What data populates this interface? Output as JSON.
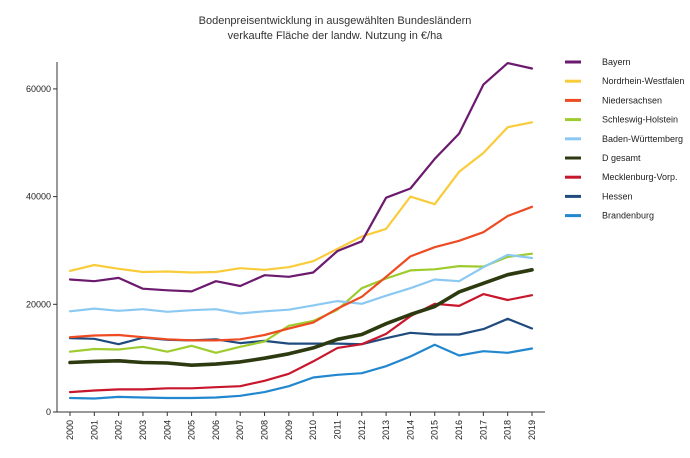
{
  "chart_data": {
    "type": "line",
    "title": "Bodenpreisentwicklung in ausgewählten Bundesländern",
    "subtitle": "verkaufte Fläche der landw. Nutzung in €/ha",
    "xlabel": "",
    "ylabel": "",
    "x": [
      "2000",
      "2001",
      "2002",
      "2003",
      "2004",
      "2005",
      "2006",
      "2007",
      "2008",
      "2009",
      "2010",
      "2011",
      "2012",
      "2013",
      "2014",
      "2015",
      "2016",
      "2017",
      "2018",
      "2019"
    ],
    "ylim": [
      0,
      65000
    ],
    "yticks": [
      0,
      20000,
      40000,
      60000
    ],
    "ytick_labels": [
      "0",
      "20000",
      "40000",
      "60000"
    ],
    "grid": false,
    "legend_position": "right",
    "series": [
      {
        "name": "Bayern",
        "color": "#6b1a6e",
        "width": 2.2,
        "values": [
          24600,
          24300,
          24900,
          22900,
          22600,
          22400,
          24300,
          23400,
          25400,
          25100,
          25900,
          29900,
          31700,
          39800,
          41500,
          47000,
          51700,
          60800,
          64800,
          63800
        ]
      },
      {
        "name": "Nordrhein-Westfalen",
        "color": "#f8cc3a",
        "width": 2.2,
        "values": [
          26200,
          27300,
          26600,
          26000,
          26100,
          25900,
          26000,
          26700,
          26400,
          26900,
          28000,
          30300,
          32600,
          34000,
          40000,
          38600,
          44600,
          48100,
          52900,
          53800
        ]
      },
      {
        "name": "Niedersachsen",
        "color": "#ef4b23",
        "width": 2.2,
        "values": [
          13900,
          14200,
          14300,
          13900,
          13500,
          13300,
          13300,
          13500,
          14300,
          15500,
          16600,
          19200,
          21400,
          25100,
          28900,
          30600,
          31800,
          33400,
          36400,
          38100
        ]
      },
      {
        "name": "Schleswig-Holstein",
        "color": "#9ecb2e",
        "width": 2.2,
        "values": [
          11200,
          11700,
          11600,
          12100,
          11200,
          12300,
          11000,
          12100,
          13100,
          16000,
          16900,
          19000,
          23000,
          24800,
          26300,
          26500,
          27100,
          27000,
          28800,
          29400
        ]
      },
      {
        "name": "Baden-Württemberg",
        "color": "#8cc9f2",
        "width": 2.2,
        "values": [
          18700,
          19200,
          18800,
          19100,
          18600,
          18900,
          19100,
          18300,
          18700,
          19000,
          19800,
          20600,
          20100,
          21600,
          23000,
          24600,
          24300,
          26900,
          29200,
          28600
        ]
      },
      {
        "name": "D gesamt",
        "color": "#2d3a10",
        "width": 3.6,
        "values": [
          9200,
          9400,
          9500,
          9200,
          9100,
          8700,
          8900,
          9300,
          10000,
          10800,
          11900,
          13500,
          14400,
          16400,
          18100,
          19600,
          22300,
          23900,
          25500,
          26400
        ]
      },
      {
        "name": "Mecklenburg-Vorp.",
        "color": "#c8172c",
        "width": 2.2,
        "values": [
          3700,
          4000,
          4200,
          4200,
          4400,
          4400,
          4600,
          4800,
          5800,
          7100,
          9400,
          11900,
          12600,
          14500,
          17800,
          20100,
          19700,
          21900,
          20800,
          21700
        ]
      },
      {
        "name": "Hessen",
        "color": "#1f4b7e",
        "width": 2.2,
        "values": [
          13700,
          13600,
          12600,
          13800,
          13400,
          13300,
          13500,
          12800,
          13200,
          12700,
          12700,
          12700,
          12600,
          13700,
          14700,
          14400,
          14400,
          15400,
          17300,
          15500
        ]
      },
      {
        "name": "Brandenburg",
        "color": "#2287cf",
        "width": 2.2,
        "values": [
          2600,
          2500,
          2800,
          2700,
          2600,
          2600,
          2700,
          3000,
          3700,
          4800,
          6400,
          6900,
          7200,
          8500,
          10300,
          12500,
          10500,
          11300,
          11000,
          11800
        ]
      }
    ]
  }
}
